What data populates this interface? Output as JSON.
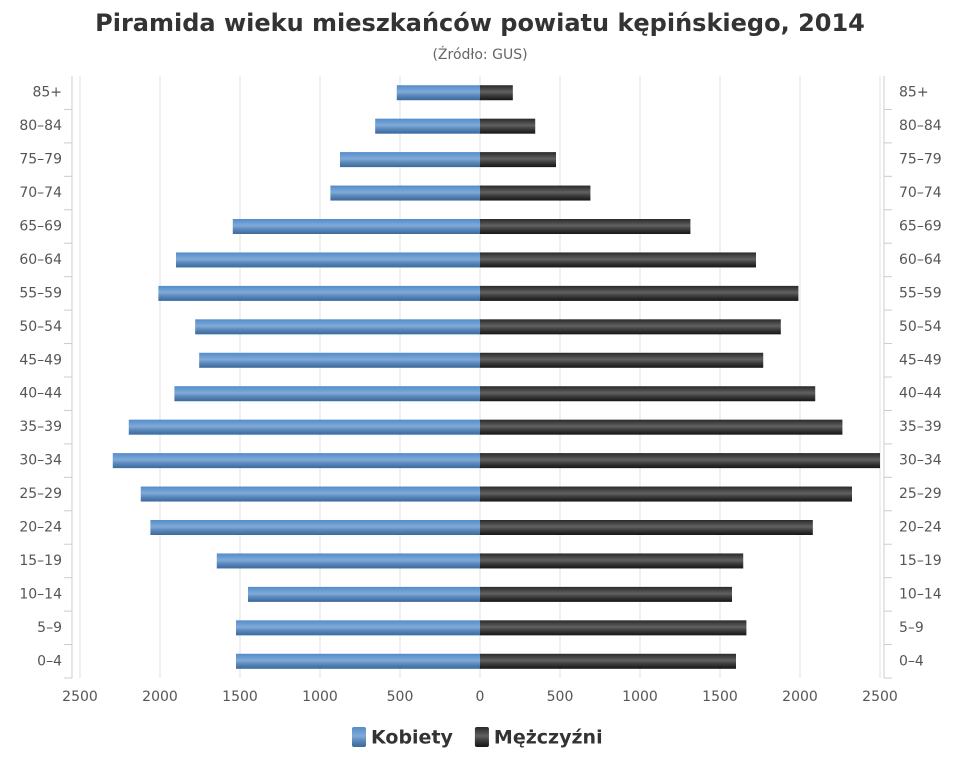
{
  "chart_data": {
    "type": "pyramid",
    "title": "Piramida wieku mieszkańców powiatu kępińskiego, 2014",
    "subtitle": "(Źródło: GUS)",
    "categories": [
      "0–4",
      "5–9",
      "10–14",
      "15–19",
      "20–24",
      "25–29",
      "30–34",
      "35–39",
      "40–44",
      "45–49",
      "50–54",
      "55–59",
      "60–64",
      "65–69",
      "70–74",
      "75–79",
      "80–84",
      "85+"
    ],
    "series": [
      {
        "name": "Kobiety",
        "color": "#4a86c8",
        "values": [
          -1525,
          -1525,
          -1450,
          -1645,
          -2060,
          -2120,
          -2295,
          -2195,
          -1910,
          -1755,
          -1780,
          -2010,
          -1900,
          -1545,
          -935,
          -875,
          -655,
          -520
        ]
      },
      {
        "name": "Mężczyźni",
        "color": "#1e1e1e",
        "values": [
          1600,
          1665,
          1575,
          1645,
          2080,
          2325,
          2500,
          2265,
          2095,
          1770,
          1880,
          1990,
          1725,
          1315,
          690,
          475,
          345,
          205
        ]
      }
    ],
    "xlim": [
      -2500,
      2500
    ],
    "xticks": [
      {
        "value": -2500,
        "label": "2500"
      },
      {
        "value": -2000,
        "label": "2000"
      },
      {
        "value": -1500,
        "label": "1500"
      },
      {
        "value": -1000,
        "label": "1000"
      },
      {
        "value": -500,
        "label": "500"
      },
      0,
      500,
      1000,
      1500,
      2000,
      2500
    ],
    "grid": true
  }
}
